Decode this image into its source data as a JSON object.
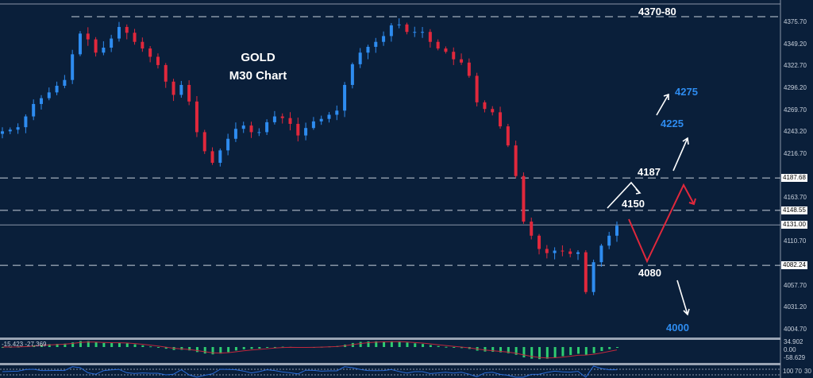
{
  "title": {
    "line1": "GOLD",
    "line2": "M30 Chart"
  },
  "annotations": {
    "resistance_top": "4370-80",
    "target_4275": "4275",
    "target_4225": "4225",
    "level_4187": "4187",
    "level_4150": "4150",
    "level_4080": "4080",
    "target_4000": "4000"
  },
  "colors": {
    "background": "#0a1f3a",
    "bull": "#2e8cf0",
    "bear": "#e0283c",
    "histogram": "#2ecc71",
    "signal": "#c0283c",
    "target_text": "#2e8cf0"
  },
  "chart_data": {
    "type": "candlestick",
    "symbol": "GOLD",
    "timeframe": "M30",
    "ylim": [
      3990,
      4390
    ],
    "y_ticks": [
      "4375.70",
      "4349.20",
      "4322.70",
      "4296.20",
      "4269.70",
      "4243.20",
      "4216.70",
      "4163.70",
      "4110.70",
      "4057.70",
      "4031.20",
      "4004.70"
    ],
    "highlighted_levels": [
      "4187.68",
      "4148.55",
      "4131.00",
      "4082.24"
    ],
    "current_price": "4131.00",
    "close": [
      4244,
      4246,
      4249,
      4262,
      4277,
      4284,
      4291,
      4299,
      4306,
      4337,
      4362,
      4355,
      4339,
      4345,
      4356,
      4370,
      4363,
      4352,
      4344,
      4334,
      4324,
      4304,
      4288,
      4300,
      4280,
      4243,
      4220,
      4206,
      4221,
      4235,
      4247,
      4251,
      4243,
      4243,
      4255,
      4262,
      4260,
      4253,
      4239,
      4248,
      4256,
      4259,
      4264,
      4269,
      4300,
      4325,
      4339,
      4346,
      4352,
      4359,
      4372,
      4373,
      4364,
      4364,
      4364,
      4352,
      4344,
      4340,
      4331,
      4327,
      4311,
      4279,
      4271,
      4267,
      4250,
      4227,
      4190,
      4135,
      4118,
      4102,
      4097,
      4100,
      4099,
      4096,
      4098,
      4050,
      4086,
      4106,
      4118,
      4130
    ],
    "dashed_levels": [
      4187.68,
      4148.55,
      4082.24
    ],
    "solid_level": 4131.0
  },
  "macd": {
    "values": "-15.423 -27.369",
    "axis": [
      "34.902",
      "0.00",
      "-58.629"
    ]
  },
  "oscillator": {
    "axis": [
      "100",
      "70",
      "30"
    ]
  }
}
